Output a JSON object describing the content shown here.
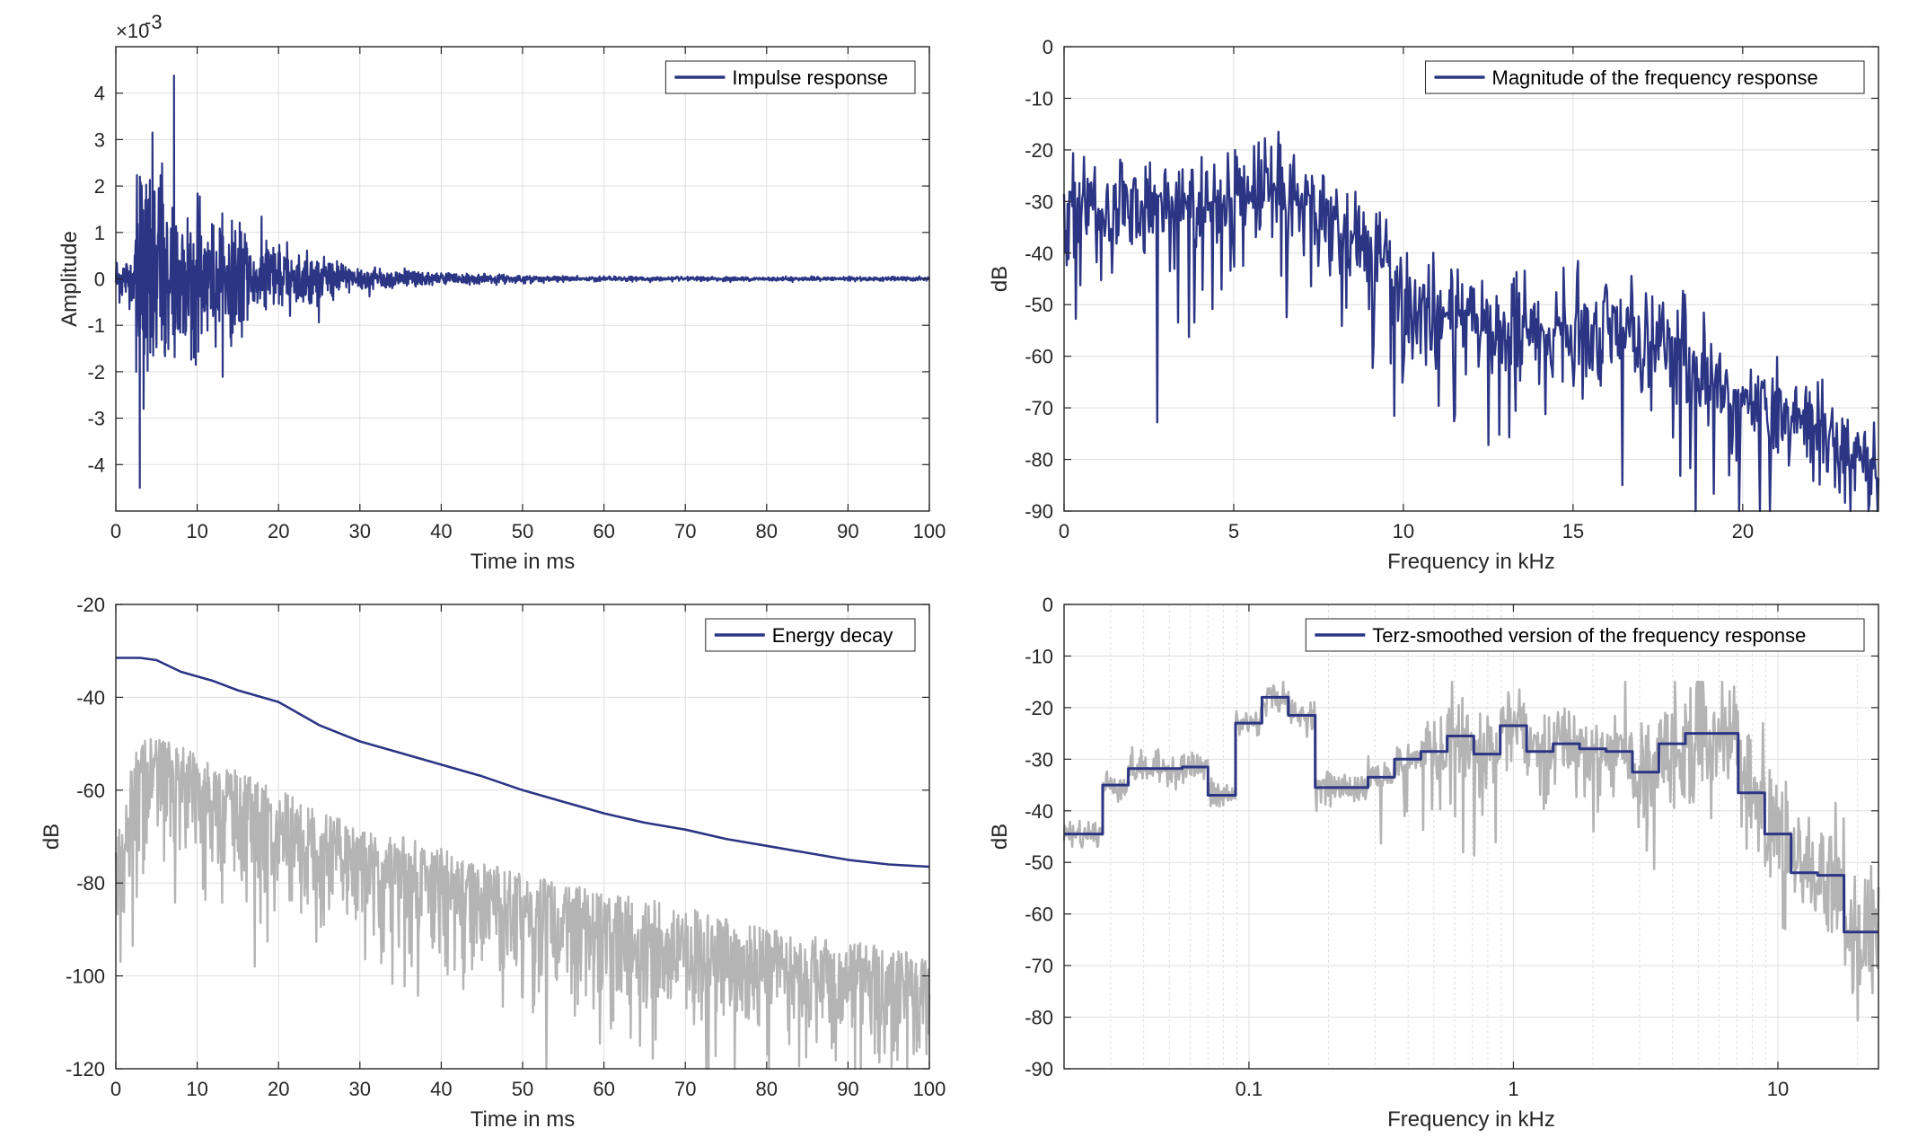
{
  "colors": {
    "series": "#2b3584",
    "gray": "#b4b4b4",
    "grid": "#dfdfdf",
    "axis": "#262626"
  },
  "chart_data": [
    {
      "type": "line",
      "legend": "Impulse response",
      "legend_position": "top-right",
      "xlabel": "Time in ms",
      "ylabel": "Amplitude",
      "exponent_label": "×10",
      "exponent_power": "-3",
      "xlim": [
        0,
        100
      ],
      "ylim": [
        -5,
        5
      ],
      "xticks": [
        0,
        10,
        20,
        30,
        40,
        50,
        60,
        70,
        80,
        90,
        100
      ],
      "yticks": [
        -4,
        -3,
        -2,
        -1,
        0,
        1,
        2,
        3,
        4
      ],
      "grid": true,
      "series": [
        {
          "values_from": "synthetic-decaying-noise",
          "peak_positive": 4.38,
          "peak_negative": -4.5,
          "peak_time_ms": [
            7.2,
            3.0
          ],
          "decay_ms": 12
        }
      ]
    },
    {
      "type": "line",
      "legend": "Magnitude of the frequency response",
      "legend_position": "top-right",
      "xlabel": "Frequency in kHz",
      "ylabel": "dB",
      "xlim": [
        0,
        24
      ],
      "ylim": [
        -90,
        0
      ],
      "xticks": [
        0,
        5,
        10,
        15,
        20
      ],
      "yticks": [
        0,
        -10,
        -20,
        -30,
        -40,
        -50,
        -60,
        -70,
        -80,
        -90
      ],
      "grid": true,
      "envelope": {
        "x_khz": [
          0,
          1,
          5,
          6,
          9.5,
          10,
          15,
          17,
          20,
          22,
          24
        ],
        "db": [
          -28,
          -28,
          -27,
          -22,
          -37,
          -47,
          -52,
          -50,
          -66,
          -70,
          -80
        ]
      }
    },
    {
      "type": "line",
      "legend": "Energy decay",
      "legend_position": "top-right",
      "xlabel": "Time in ms",
      "ylabel": "dB",
      "xlim": [
        0,
        100
      ],
      "ylim": [
        -120,
        -20
      ],
      "xticks": [
        0,
        10,
        20,
        30,
        40,
        50,
        60,
        70,
        80,
        90,
        100
      ],
      "yticks": [
        -20,
        -40,
        -60,
        -80,
        -100,
        -120
      ],
      "grid": true,
      "series": [
        {
          "name": "Energy decay",
          "x": [
            0,
            3,
            5,
            8,
            12,
            15,
            20,
            22,
            25,
            30,
            35,
            40,
            45,
            50,
            55,
            60,
            65,
            70,
            75,
            80,
            85,
            90,
            95,
            100
          ],
          "y": [
            -31.5,
            -31.5,
            -32,
            -34.5,
            -36.5,
            -38.5,
            -41,
            -43,
            -46,
            -49.5,
            -52,
            -54.5,
            -57,
            -60,
            -62.5,
            -65,
            -67,
            -68.5,
            -70.5,
            -72,
            -73.5,
            -75,
            -76,
            -76.5
          ]
        },
        {
          "name": "",
          "envelope_peak": {
            "x": [
              0,
              3,
              10,
              20,
              30,
              40,
              50,
              60,
              70,
              80,
              90,
              100
            ],
            "y": [
              -70,
              -47,
              -52,
              -60,
              -68,
              -72,
              -78,
              -82,
              -85,
              -90,
              -92,
              -96
            ]
          }
        }
      ]
    },
    {
      "type": "line",
      "legend": "Terz-smoothed version of the frequency response",
      "legend_position": "top-right",
      "xlabel": "Frequency in kHz",
      "ylabel": "dB",
      "xscale": "log",
      "xlim": [
        0.02,
        24
      ],
      "ylim": [
        -90,
        0
      ],
      "xticks": [
        0.1,
        1,
        10
      ],
      "xtick_labels": [
        "0.1",
        "1",
        "10"
      ],
      "yticks": [
        0,
        -10,
        -20,
        -30,
        -40,
        -50,
        -60,
        -70,
        -80,
        -90
      ],
      "grid": true,
      "series": [
        {
          "name": "Terz-smoothed version of the frequency response",
          "band_edges_khz": [
            0.02,
            0.028,
            0.035,
            0.045,
            0.056,
            0.07,
            0.089,
            0.112,
            0.141,
            0.178,
            0.224,
            0.282,
            0.355,
            0.447,
            0.562,
            0.708,
            0.891,
            1.122,
            1.413,
            1.778,
            2.239,
            2.818,
            3.548,
            4.467,
            5.623,
            7.079,
            8.913,
            11.22,
            14.13,
            17.78,
            24
          ],
          "band_db": [
            -44.5,
            -35,
            -31.8,
            -31.8,
            -31.5,
            -37,
            -23,
            -18,
            -21.5,
            -35.5,
            -35.5,
            -33.5,
            -30,
            -28.5,
            -25.5,
            -29,
            -23.5,
            -28.5,
            -27,
            -28,
            -28.5,
            -32.5,
            -27,
            -25,
            -25,
            -36.5,
            -44.5,
            -52,
            -52.5,
            -63.5
          ]
        },
        {
          "name": "",
          "envelope_from": "unsmoothed-magnitude"
        }
      ]
    }
  ]
}
